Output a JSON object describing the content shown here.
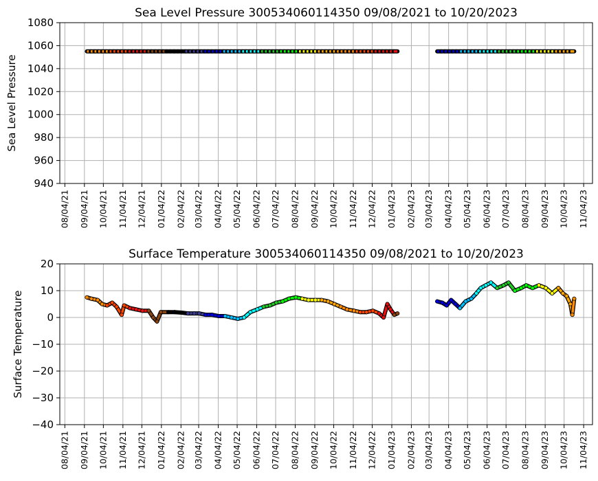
{
  "chart_data": [
    {
      "type": "scatter",
      "title": "Sea Level Pressure 300534060114350  09/08/2021 to 10/20/2023",
      "xlabel": "",
      "ylabel": "Sea Level Pressure",
      "ylim": [
        940,
        1080
      ],
      "yticks": [
        940,
        960,
        980,
        1000,
        1020,
        1040,
        1060,
        1080
      ],
      "xlim": [
        "2021-07-27",
        "2023-11-18"
      ],
      "xticks": [
        "08/04/21",
        "09/04/21",
        "10/04/21",
        "11/04/21",
        "12/04/21",
        "01/04/22",
        "02/04/22",
        "03/04/22",
        "04/04/22",
        "05/04/22",
        "06/04/22",
        "07/04/22",
        "08/04/22",
        "09/04/22",
        "10/04/22",
        "11/04/22",
        "12/04/22",
        "01/04/23",
        "02/04/23",
        "03/04/23",
        "04/04/23",
        "05/04/23",
        "06/04/23",
        "07/04/23",
        "08/04/23",
        "09/04/23",
        "10/04/23",
        "11/04/23"
      ],
      "grid": true,
      "series": [
        {
          "segments": [
            {
              "start": "2021-09-08",
              "end": "2023-01-13",
              "value": 1055
            },
            {
              "start": "2023-03-17",
              "end": "2023-10-20",
              "value": 1055
            }
          ]
        }
      ]
    },
    {
      "type": "scatter",
      "title": "Surface Temperature 300534060114350  09/08/2021 to 10/20/2023",
      "xlabel": "",
      "ylabel": "Surface Temperature",
      "ylim": [
        -40,
        20
      ],
      "yticks": [
        -40,
        -30,
        -20,
        -10,
        0,
        10,
        20
      ],
      "xlim": [
        "2021-07-27",
        "2023-11-18"
      ],
      "xticks": [
        "08/04/21",
        "09/04/21",
        "10/04/21",
        "11/04/21",
        "12/04/21",
        "01/04/22",
        "02/04/22",
        "03/04/22",
        "04/04/22",
        "05/04/22",
        "06/04/22",
        "07/04/22",
        "08/04/22",
        "09/04/22",
        "10/04/22",
        "11/04/22",
        "12/04/22",
        "01/04/23",
        "02/04/23",
        "03/04/23",
        "04/04/23",
        "05/04/23",
        "06/04/23",
        "07/04/23",
        "08/04/23",
        "09/04/23",
        "10/04/23",
        "11/04/23"
      ],
      "grid": true,
      "series": [
        {
          "points": [
            [
              "2021-09-08",
              7.5
            ],
            [
              "2021-09-15",
              7.0
            ],
            [
              "2021-09-25",
              6.5
            ],
            [
              "2021-10-02",
              5.0
            ],
            [
              "2021-10-10",
              4.5
            ],
            [
              "2021-10-18",
              5.5
            ],
            [
              "2021-10-25",
              4.0
            ],
            [
              "2021-11-02",
              1.0
            ],
            [
              "2021-11-06",
              4.5
            ],
            [
              "2021-11-15",
              3.5
            ],
            [
              "2021-11-25",
              3.0
            ],
            [
              "2021-12-05",
              2.5
            ],
            [
              "2021-12-15",
              2.5
            ],
            [
              "2021-12-22",
              0.0
            ],
            [
              "2021-12-28",
              -1.5
            ],
            [
              "2022-01-03",
              2.0
            ],
            [
              "2022-01-15",
              2.0
            ],
            [
              "2022-01-25",
              2.0
            ],
            [
              "2022-02-05",
              1.8
            ],
            [
              "2022-02-15",
              1.5
            ],
            [
              "2022-02-25",
              1.5
            ],
            [
              "2022-03-05",
              1.5
            ],
            [
              "2022-03-15",
              1.0
            ],
            [
              "2022-03-25",
              1.0
            ],
            [
              "2022-04-05",
              0.5
            ],
            [
              "2022-04-15",
              0.5
            ],
            [
              "2022-04-25",
              0.0
            ],
            [
              "2022-05-05",
              -0.5
            ],
            [
              "2022-05-15",
              0.0
            ],
            [
              "2022-05-25",
              2.0
            ],
            [
              "2022-06-05",
              3.0
            ],
            [
              "2022-06-15",
              4.0
            ],
            [
              "2022-06-25",
              4.5
            ],
            [
              "2022-07-05",
              5.5
            ],
            [
              "2022-07-15",
              6.0
            ],
            [
              "2022-07-25",
              7.0
            ],
            [
              "2022-08-05",
              7.5
            ],
            [
              "2022-08-15",
              7.0
            ],
            [
              "2022-08-25",
              6.5
            ],
            [
              "2022-09-05",
              6.5
            ],
            [
              "2022-09-15",
              6.5
            ],
            [
              "2022-09-25",
              6.0
            ],
            [
              "2022-10-05",
              5.0
            ],
            [
              "2022-10-15",
              4.0
            ],
            [
              "2022-10-25",
              3.0
            ],
            [
              "2022-11-05",
              2.5
            ],
            [
              "2022-11-15",
              2.0
            ],
            [
              "2022-11-25",
              2.0
            ],
            [
              "2022-12-05",
              2.5
            ],
            [
              "2022-12-15",
              1.5
            ],
            [
              "2022-12-22",
              0.0
            ],
            [
              "2022-12-28",
              5.0
            ],
            [
              "2023-01-02",
              3.0
            ],
            [
              "2023-01-08",
              1.0
            ],
            [
              "2023-01-13",
              1.5
            ],
            [
              "2023-03-17",
              6.0
            ],
            [
              "2023-03-25",
              5.5
            ],
            [
              "2023-04-01",
              4.5
            ],
            [
              "2023-04-08",
              6.5
            ],
            [
              "2023-04-15",
              5.0
            ],
            [
              "2023-04-22",
              3.5
            ],
            [
              "2023-05-01",
              6.0
            ],
            [
              "2023-05-10",
              7.0
            ],
            [
              "2023-05-18",
              9.0
            ],
            [
              "2023-05-25",
              11.0
            ],
            [
              "2023-06-02",
              12.0
            ],
            [
              "2023-06-10",
              13.0
            ],
            [
              "2023-06-20",
              11.0
            ],
            [
              "2023-06-30",
              12.0
            ],
            [
              "2023-07-08",
              13.0
            ],
            [
              "2023-07-18",
              10.0
            ],
            [
              "2023-07-28",
              11.0
            ],
            [
              "2023-08-05",
              12.0
            ],
            [
              "2023-08-15",
              11.0
            ],
            [
              "2023-08-25",
              12.0
            ],
            [
              "2023-09-05",
              11.0
            ],
            [
              "2023-09-15",
              9.0
            ],
            [
              "2023-09-25",
              11.0
            ],
            [
              "2023-10-02",
              9.0
            ],
            [
              "2023-10-08",
              8.0
            ],
            [
              "2023-10-14",
              5.0
            ],
            [
              "2023-10-17",
              1.0
            ],
            [
              "2023-10-20",
              7.0
            ]
          ]
        }
      ]
    }
  ],
  "palette": {
    "colors": [
      "#ff8c00",
      "#ff4500",
      "#e81010",
      "#8b4513",
      "#000000",
      "#3b3b8f",
      "#0000dd",
      "#00bfff",
      "#00ffff",
      "#22cc22",
      "#00ff00",
      "#ffff00",
      "#ffa500"
    ],
    "grid": "#b0b0b0"
  }
}
